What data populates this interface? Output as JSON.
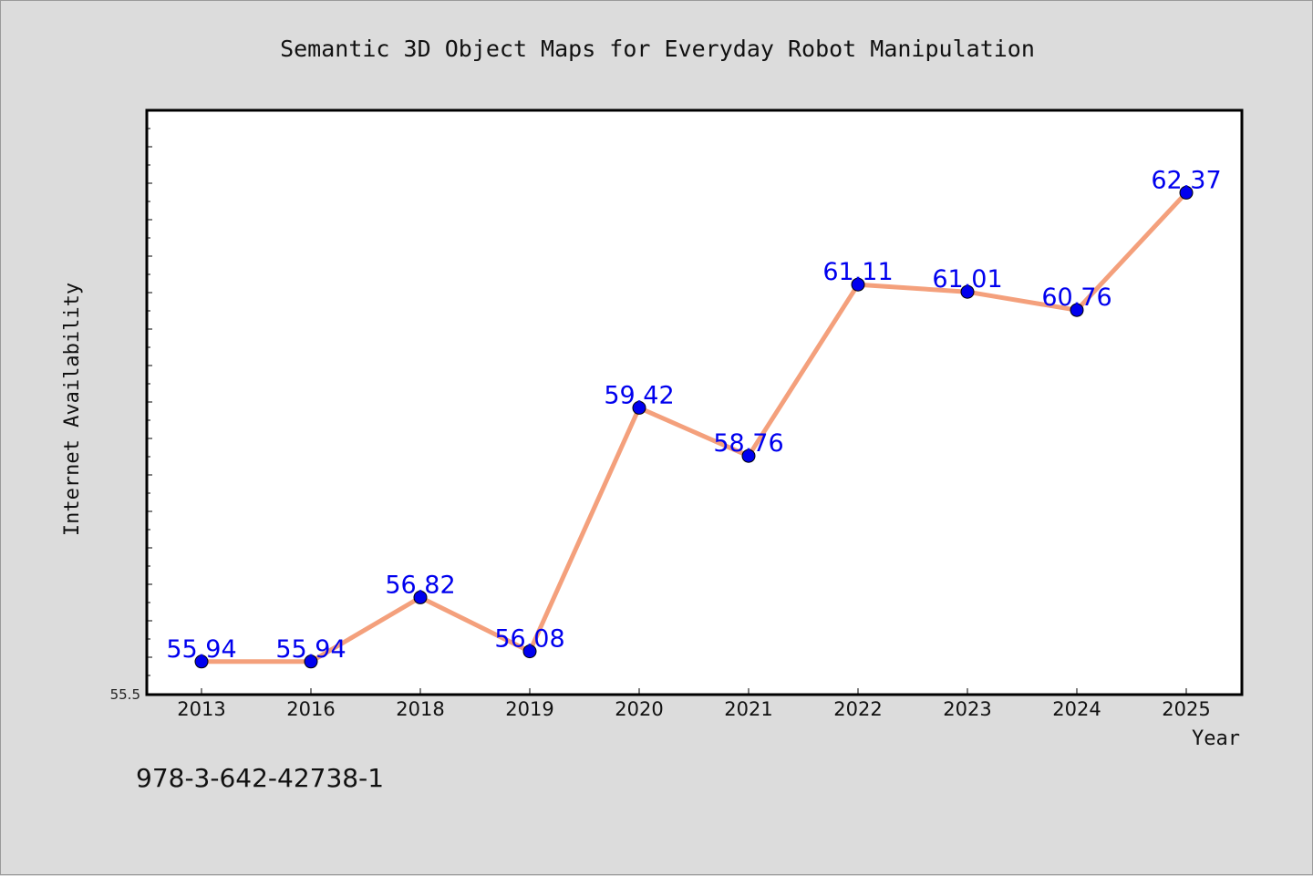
{
  "chart_data": {
    "type": "line",
    "title": "Semantic 3D Object Maps for Everyday Robot Manipulation",
    "xlabel": "Year",
    "ylabel": "Internet Availability",
    "categories": [
      "2013",
      "2016",
      "2018",
      "2019",
      "2020",
      "2021",
      "2022",
      "2023",
      "2024",
      "2025"
    ],
    "series": [
      {
        "values": [
          55.94,
          55.94,
          56.82,
          56.08,
          59.42,
          58.76,
          61.11,
          61.01,
          60.76,
          62.37
        ],
        "value_labels": [
          "55.94",
          "55.94",
          "56.82",
          "56.08",
          "59.42",
          "58.76",
          "61.11",
          "61.01",
          "60.76",
          "62.37"
        ]
      }
    ],
    "ylim": [
      55.5,
      63.5
    ],
    "y_tick_label": "55.5",
    "grid": false,
    "colors": {
      "line": "#f4a07c",
      "marker": "#0000ee",
      "data_label": "#0000ee",
      "background": "#dcdcdc",
      "plot_background": "#ffffff"
    }
  },
  "footer_text": "978-3-642-42738-1"
}
